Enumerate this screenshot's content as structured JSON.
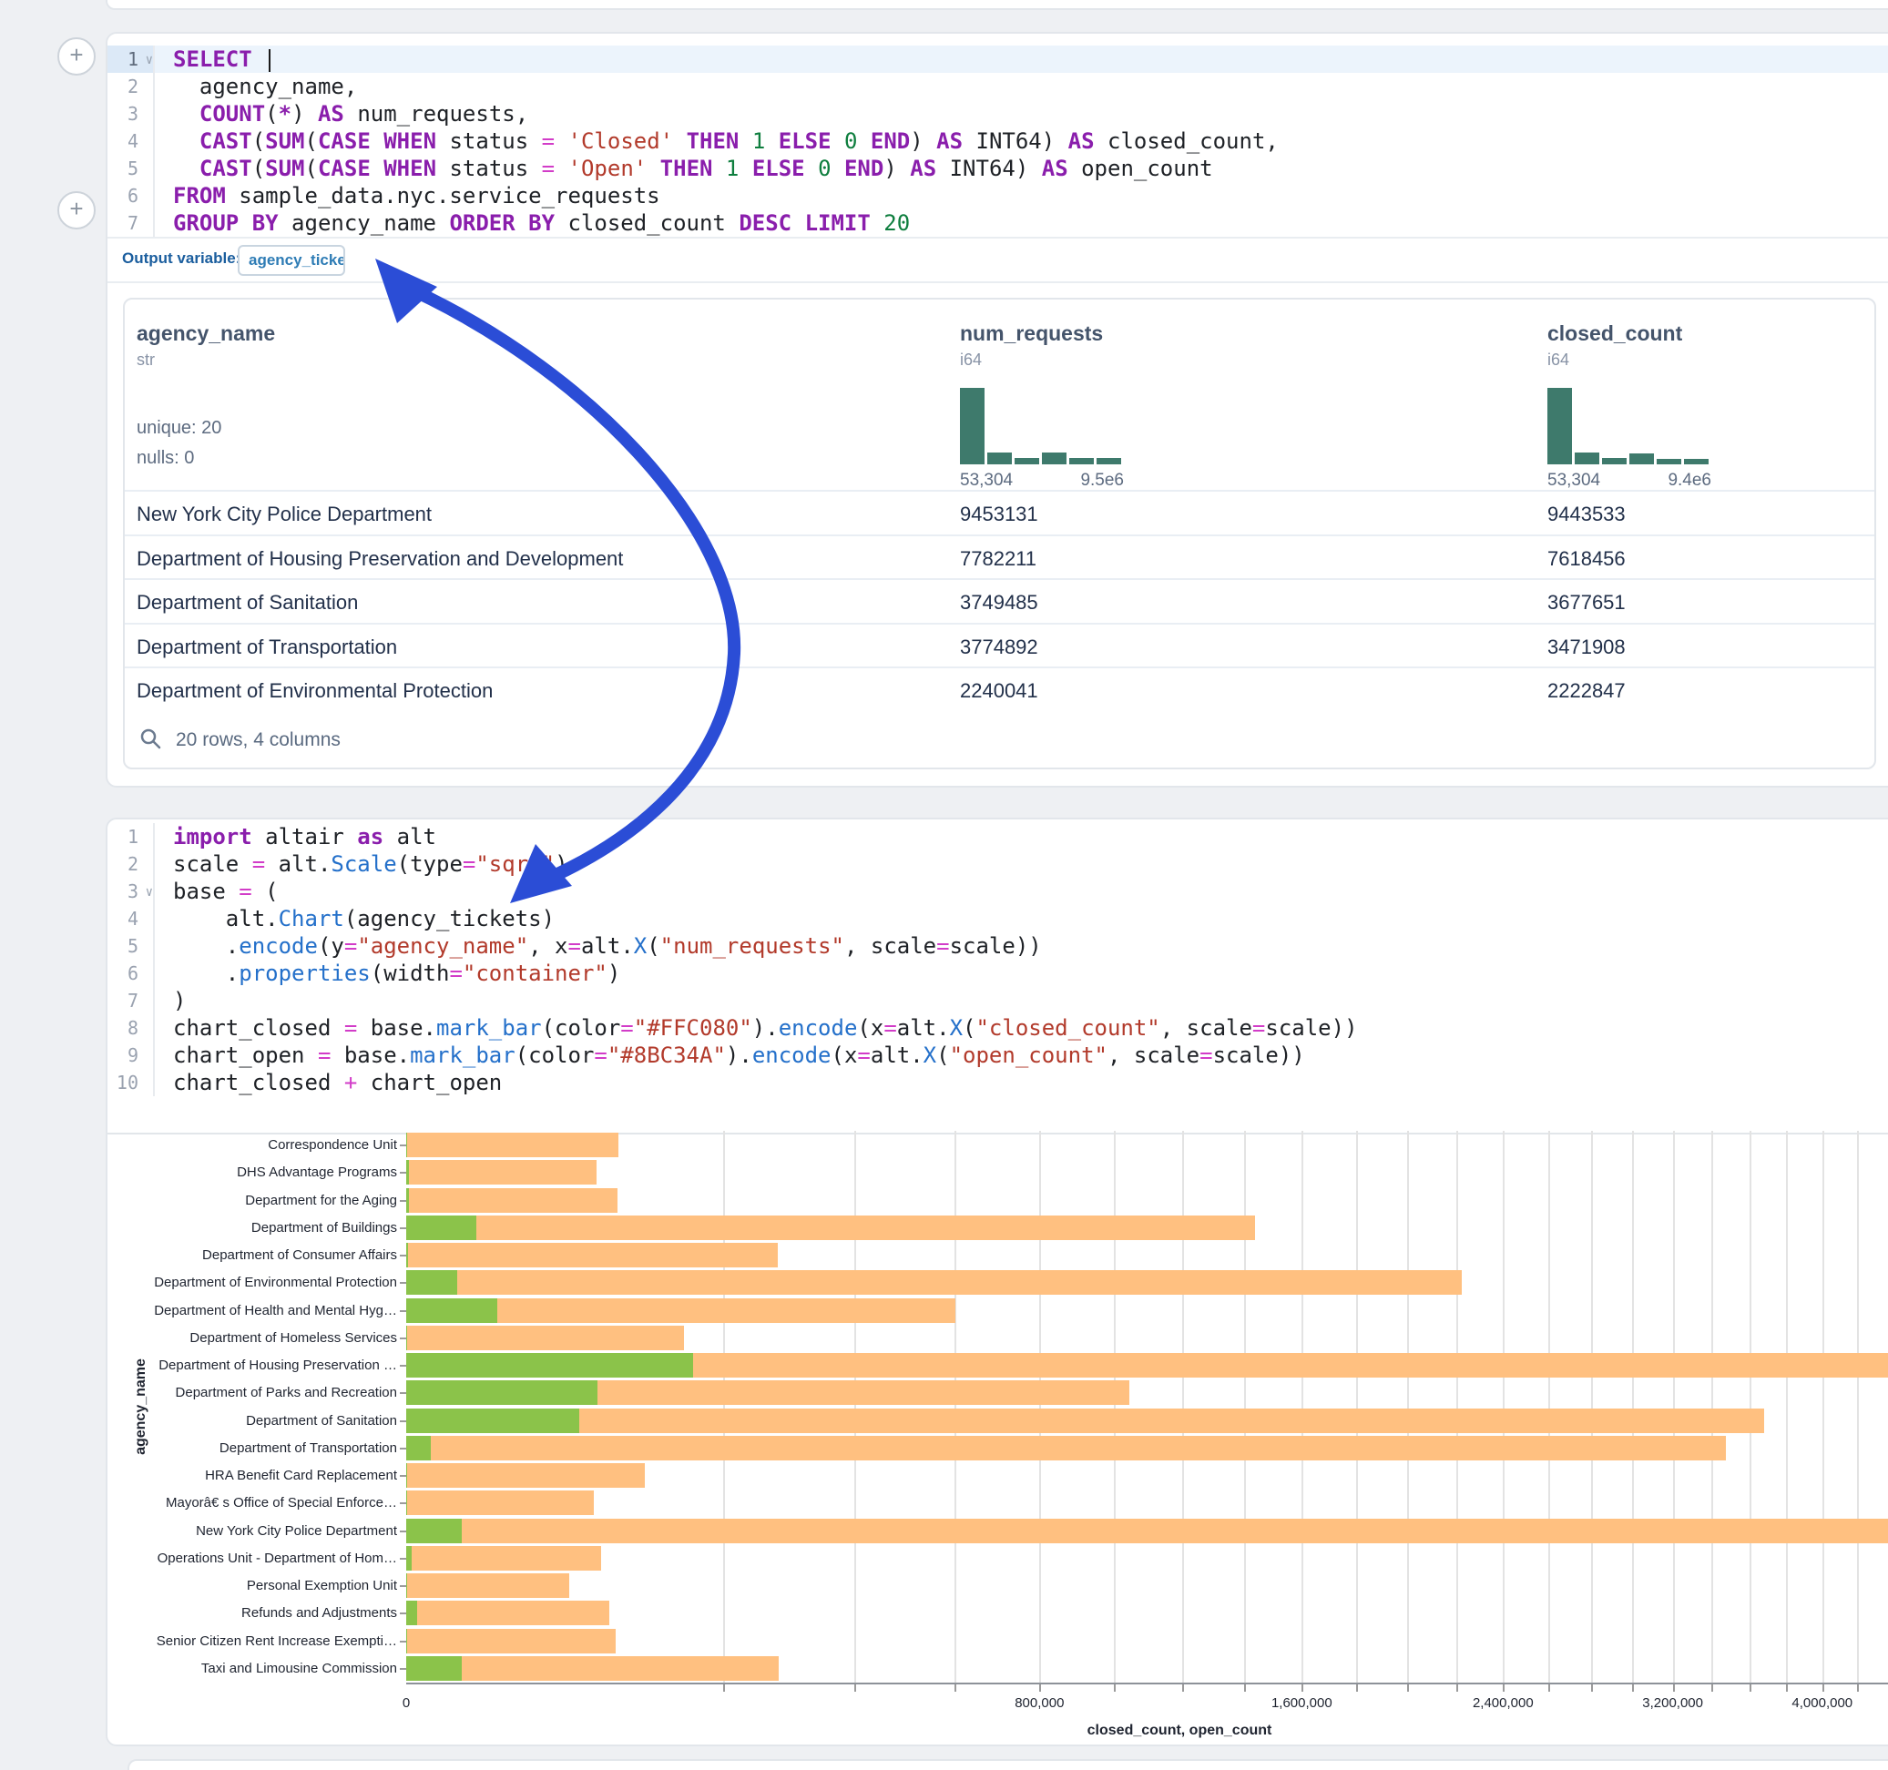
{
  "ui": {
    "add_cell": "+"
  },
  "sql_cell": {
    "output_variable_label": "Output variable:",
    "output_variable_value": "agency_tickets",
    "lines": [
      {
        "n": "1",
        "fold": true,
        "active": true,
        "tokens": [
          [
            "k",
            "SELECT"
          ],
          [
            "p",
            " "
          ],
          [
            "caret",
            ""
          ]
        ]
      },
      {
        "n": "2",
        "tokens": [
          [
            "p",
            "  agency_name,"
          ]
        ]
      },
      {
        "n": "3",
        "tokens": [
          [
            "p",
            "  "
          ],
          [
            "k",
            "COUNT"
          ],
          [
            "p",
            "("
          ],
          [
            "k",
            "*"
          ],
          [
            "p",
            ") "
          ],
          [
            "k",
            "AS"
          ],
          [
            "p",
            " num_requests,"
          ]
        ]
      },
      {
        "n": "4",
        "tokens": [
          [
            "p",
            "  "
          ],
          [
            "k",
            "CAST"
          ],
          [
            "p",
            "("
          ],
          [
            "k",
            "SUM"
          ],
          [
            "p",
            "("
          ],
          [
            "k",
            "CASE"
          ],
          [
            "p",
            " "
          ],
          [
            "k",
            "WHEN"
          ],
          [
            "p",
            " status "
          ],
          [
            "o",
            "="
          ],
          [
            "p",
            " "
          ],
          [
            "s",
            "'Closed'"
          ],
          [
            "p",
            " "
          ],
          [
            "k",
            "THEN"
          ],
          [
            "p",
            " "
          ],
          [
            "n",
            "1"
          ],
          [
            "p",
            " "
          ],
          [
            "k",
            "ELSE"
          ],
          [
            "p",
            " "
          ],
          [
            "n",
            "0"
          ],
          [
            "p",
            " "
          ],
          [
            "k",
            "END"
          ],
          [
            "p",
            ") "
          ],
          [
            "k",
            "AS"
          ],
          [
            "p",
            " INT64) "
          ],
          [
            "k",
            "AS"
          ],
          [
            "p",
            " closed_count,"
          ]
        ]
      },
      {
        "n": "5",
        "tokens": [
          [
            "p",
            "  "
          ],
          [
            "k",
            "CAST"
          ],
          [
            "p",
            "("
          ],
          [
            "k",
            "SUM"
          ],
          [
            "p",
            "("
          ],
          [
            "k",
            "CASE"
          ],
          [
            "p",
            " "
          ],
          [
            "k",
            "WHEN"
          ],
          [
            "p",
            " status "
          ],
          [
            "o",
            "="
          ],
          [
            "p",
            " "
          ],
          [
            "s",
            "'Open'"
          ],
          [
            "p",
            " "
          ],
          [
            "k",
            "THEN"
          ],
          [
            "p",
            " "
          ],
          [
            "n",
            "1"
          ],
          [
            "p",
            " "
          ],
          [
            "k",
            "ELSE"
          ],
          [
            "p",
            " "
          ],
          [
            "n",
            "0"
          ],
          [
            "p",
            " "
          ],
          [
            "k",
            "END"
          ],
          [
            "p",
            ") "
          ],
          [
            "k",
            "AS"
          ],
          [
            "p",
            " INT64) "
          ],
          [
            "k",
            "AS"
          ],
          [
            "p",
            " open_count"
          ]
        ]
      },
      {
        "n": "6",
        "tokens": [
          [
            "k",
            "FROM"
          ],
          [
            "p",
            " sample_data.nyc.service_requests"
          ]
        ]
      },
      {
        "n": "7",
        "tokens": [
          [
            "k",
            "GROUP BY"
          ],
          [
            "p",
            " agency_name "
          ],
          [
            "k",
            "ORDER BY"
          ],
          [
            "p",
            " closed_count "
          ],
          [
            "k",
            "DESC"
          ],
          [
            "p",
            " "
          ],
          [
            "k",
            "LIMIT"
          ],
          [
            "p",
            " "
          ],
          [
            "n",
            "20"
          ]
        ]
      }
    ]
  },
  "table": {
    "columns": [
      {
        "name": "agency_name",
        "dtype": "str",
        "stats": [
          "unique: 20",
          "nulls: 0"
        ]
      },
      {
        "name": "num_requests",
        "dtype": "i64",
        "hist": [
          84,
          13,
          7,
          13,
          7,
          7
        ],
        "hist_color": "#3e7a6c",
        "min_label": "53,304",
        "max_label": "9.5e6"
      },
      {
        "name": "closed_count",
        "dtype": "i64",
        "hist": [
          84,
          13,
          7,
          12,
          6,
          6
        ],
        "hist_color": "#3e7a6c",
        "min_label": "53,304",
        "max_label": "9.4e6"
      }
    ],
    "rows": [
      [
        "New York City Police Department",
        "9453131",
        "9443533"
      ],
      [
        "Department of Housing Preservation and Development",
        "7782211",
        "7618456"
      ],
      [
        "Department of Sanitation",
        "3749485",
        "3677651"
      ],
      [
        "Department of Transportation",
        "3774892",
        "3471908"
      ],
      [
        "Department of Environmental Protection",
        "2240041",
        "2222847"
      ]
    ],
    "footer": "20 rows, 4 columns"
  },
  "python_cell": {
    "lines": [
      {
        "n": "1",
        "tokens": [
          [
            "k",
            "import"
          ],
          [
            "p",
            " altair "
          ],
          [
            "k",
            "as"
          ],
          [
            "p",
            " alt"
          ]
        ]
      },
      {
        "n": "2",
        "tokens": [
          [
            "p",
            "scale "
          ],
          [
            "o",
            "="
          ],
          [
            "p",
            " alt."
          ],
          [
            "f",
            "Scale"
          ],
          [
            "p",
            "(type"
          ],
          [
            "o",
            "="
          ],
          [
            "s",
            "\"sqrt\""
          ],
          [
            "p",
            ")"
          ]
        ]
      },
      {
        "n": "3",
        "fold": true,
        "tokens": [
          [
            "p",
            "base "
          ],
          [
            "o",
            "="
          ],
          [
            "p",
            " ("
          ]
        ]
      },
      {
        "n": "4",
        "tokens": [
          [
            "p",
            "    alt."
          ],
          [
            "f",
            "Chart"
          ],
          [
            "p",
            "(agency_tickets)"
          ]
        ]
      },
      {
        "n": "5",
        "tokens": [
          [
            "p",
            "    ."
          ],
          [
            "f",
            "encode"
          ],
          [
            "p",
            "(y"
          ],
          [
            "o",
            "="
          ],
          [
            "s",
            "\"agency_name\""
          ],
          [
            "p",
            ", x"
          ],
          [
            "o",
            "="
          ],
          [
            "p",
            "alt."
          ],
          [
            "f",
            "X"
          ],
          [
            "p",
            "("
          ],
          [
            "s",
            "\"num_requests\""
          ],
          [
            "p",
            ", scale"
          ],
          [
            "o",
            "="
          ],
          [
            "p",
            "scale))"
          ]
        ]
      },
      {
        "n": "6",
        "tokens": [
          [
            "p",
            "    ."
          ],
          [
            "f",
            "properties"
          ],
          [
            "p",
            "(width"
          ],
          [
            "o",
            "="
          ],
          [
            "s",
            "\"container\""
          ],
          [
            "p",
            ")"
          ]
        ]
      },
      {
        "n": "7",
        "tokens": [
          [
            "p",
            ")"
          ]
        ]
      },
      {
        "n": "8",
        "tokens": [
          [
            "p",
            "chart_closed "
          ],
          [
            "o",
            "="
          ],
          [
            "p",
            " base."
          ],
          [
            "f",
            "mark_bar"
          ],
          [
            "p",
            "(color"
          ],
          [
            "o",
            "="
          ],
          [
            "s",
            "\"#FFC080\""
          ],
          [
            "p",
            ")."
          ],
          [
            "f",
            "encode"
          ],
          [
            "p",
            "(x"
          ],
          [
            "o",
            "="
          ],
          [
            "p",
            "alt."
          ],
          [
            "f",
            "X"
          ],
          [
            "p",
            "("
          ],
          [
            "s",
            "\"closed_count\""
          ],
          [
            "p",
            ", scale"
          ],
          [
            "o",
            "="
          ],
          [
            "p",
            "scale))"
          ]
        ]
      },
      {
        "n": "9",
        "tokens": [
          [
            "p",
            "chart_open "
          ],
          [
            "o",
            "="
          ],
          [
            "p",
            " base."
          ],
          [
            "f",
            "mark_bar"
          ],
          [
            "p",
            "(color"
          ],
          [
            "o",
            "="
          ],
          [
            "s",
            "\"#8BC34A\""
          ],
          [
            "p",
            ")."
          ],
          [
            "f",
            "encode"
          ],
          [
            "p",
            "(x"
          ],
          [
            "o",
            "="
          ],
          [
            "p",
            "alt."
          ],
          [
            "f",
            "X"
          ],
          [
            "p",
            "("
          ],
          [
            "s",
            "\"open_count\""
          ],
          [
            "p",
            ", scale"
          ],
          [
            "o",
            "="
          ],
          [
            "p",
            "scale))"
          ]
        ]
      },
      {
        "n": "10",
        "tokens": [
          [
            "p",
            "chart_closed "
          ],
          [
            "o",
            "+"
          ],
          [
            "p",
            " chart_open"
          ]
        ]
      }
    ]
  },
  "chart_data": {
    "type": "bar",
    "orientation": "horizontal",
    "x_scale_type": "sqrt",
    "xlabel": "closed_count, open_count",
    "ylabel": "agency_name",
    "grid": true,
    "x_tick_labels": [
      "0",
      "800,000",
      "1,600,000",
      "2,400,000",
      "3,200,000",
      "4,000,000"
    ],
    "x_tick_values": [
      0,
      800000,
      1600000,
      2400000,
      3200000,
      4000000
    ],
    "x_minor_step": 200000,
    "x_domain_max": 9443533,
    "series": [
      {
        "name": "closed_count",
        "color": "#FFC080"
      },
      {
        "name": "open_count",
        "color": "#8BC34A"
      }
    ],
    "categories": [
      "Correspondence Unit",
      "DHS Advantage Programs",
      "Department for the Aging",
      "Department of Buildings",
      "Department of Consumer Affairs",
      "Department of Environmental Protection",
      "Department of Health and Mental Hyg…",
      "Department of Homeless Services",
      "Department of Housing Preservation …",
      "Department of Parks and Recreation",
      "Department of Sanitation",
      "Department of Transportation",
      "HRA Benefit Card Replacement",
      "Mayorâ€ s Office of Special Enforce…",
      "New York City Police Department",
      "Operations Unit - Department of Hom…",
      "Personal Exemption Unit",
      "Refunds and Adjustments",
      "Senior Citizen Rent Increase Exempti…",
      "Taxi and Limousine Commission"
    ],
    "closed_count": [
      90000,
      72000,
      89000,
      1437000,
      275000,
      2222847,
      602000,
      154000,
      7618456,
      1043000,
      3677651,
      3471908,
      114000,
      70000,
      9443533,
      76000,
      53304,
      82000,
      87500,
      277000
    ],
    "open_count": [
      2,
      15,
      15,
      9800,
      5,
      5200,
      16500,
      2,
      164000,
      73000,
      60000,
      1200,
      2,
      2,
      6200,
      60,
      2,
      240,
      2,
      6200
    ]
  },
  "annotation_arrow": {
    "color": "#2b4dd6"
  }
}
